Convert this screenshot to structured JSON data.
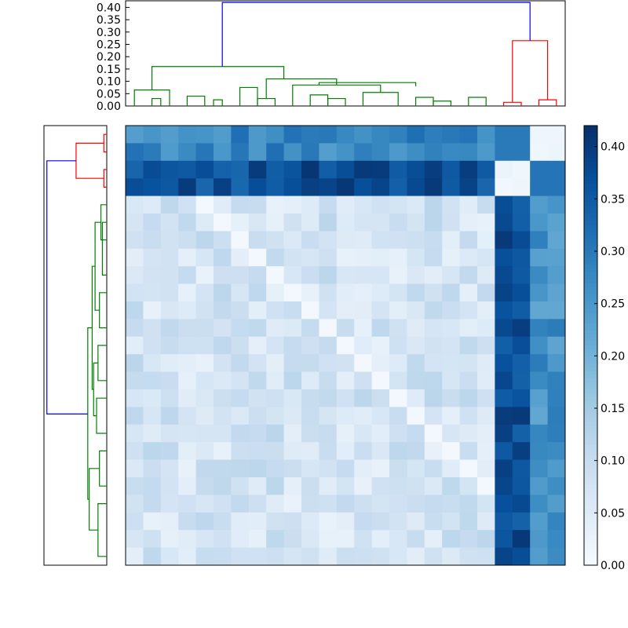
{
  "chart_data": {
    "type": "heatmap",
    "title": "",
    "n": 25,
    "colormap": "Blues",
    "colorbar": {
      "min": 0.0,
      "max": 0.42,
      "ticks": [
        "0.00",
        "0.05",
        "0.10",
        "0.15",
        "0.20",
        "0.25",
        "0.30",
        "0.35",
        "0.40"
      ],
      "tick_values": [
        0.0,
        0.05,
        0.1,
        0.15,
        0.2,
        0.25,
        0.3,
        0.35,
        0.4
      ]
    },
    "top_dendrogram": {
      "ylim": [
        0.0,
        0.43
      ],
      "yticks": [
        "0.00",
        "0.05",
        "0.10",
        "0.15",
        "0.20",
        "0.25",
        "0.30",
        "0.35",
        "0.40"
      ],
      "ytick_values": [
        0.0,
        0.05,
        0.1,
        0.15,
        0.2,
        0.25,
        0.3,
        0.35,
        0.4
      ],
      "colors": {
        "root": "#0000ff",
        "cluster_a": "#008000",
        "cluster_b": "#ff0000"
      }
    },
    "row_block_values": {
      "row0": 0.28,
      "row1": 0.27,
      "row2": 0.39,
      "row3": 0.38,
      "col21": 0.31,
      "col22": 0.29,
      "col23": 0.36
    }
  }
}
